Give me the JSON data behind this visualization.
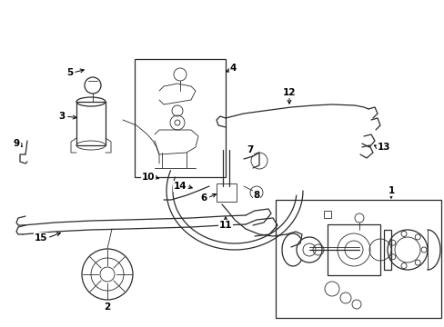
{
  "bg_color": "#ffffff",
  "line_color": "#2a2a2a",
  "fig_width": 4.89,
  "fig_height": 3.6,
  "dpi": 100,
  "lw_main": 0.9,
  "lw_thin": 0.6,
  "label_fontsize": 7.5
}
